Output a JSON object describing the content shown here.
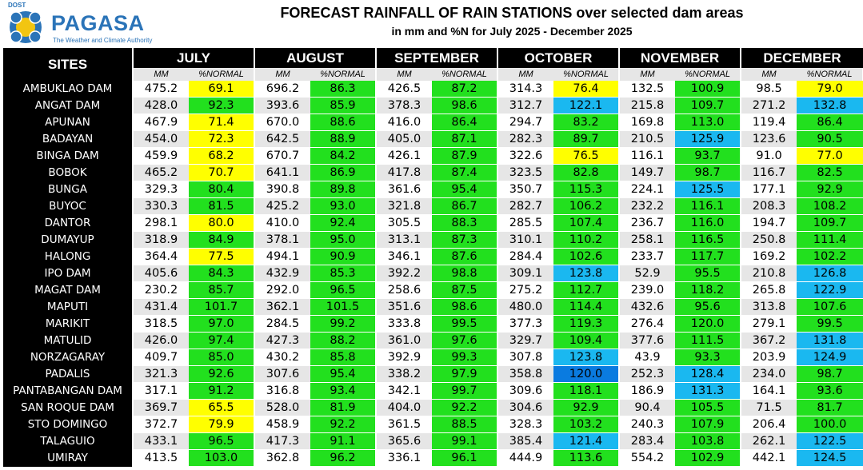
{
  "logo": {
    "agency": "DOST",
    "name": "PAGASA",
    "tagline": "The Weather and Climate Authority"
  },
  "title": "FORECAST RAINFALL OF RAIN STATIONS over selected dam areas",
  "subtitle": "in mm and %N for July 2025 - December 2025",
  "columns": {
    "sites": "SITES",
    "mm": "MM",
    "pct": "%NORMAL"
  },
  "months": [
    "JULY",
    "AUGUST",
    "SEPTEMBER",
    "OCTOBER",
    "NOVEMBER",
    "DECEMBER"
  ],
  "colors": {
    "green": "#22e01e",
    "yellow": "#ffff00",
    "lightblue": "#1ab8f0",
    "blue": "#0a7be0"
  },
  "rows": [
    {
      "site": "AMBUKLAO DAM",
      "v": [
        [
          "475.2",
          "69.1",
          "yellow"
        ],
        [
          "696.2",
          "86.3",
          "green"
        ],
        [
          "426.5",
          "87.2",
          "green"
        ],
        [
          "314.3",
          "76.4",
          "yellow"
        ],
        [
          "132.5",
          "100.9",
          "green"
        ],
        [
          "98.5",
          "79.0",
          "yellow"
        ]
      ]
    },
    {
      "site": "ANGAT DAM",
      "v": [
        [
          "428.0",
          "92.3",
          "green"
        ],
        [
          "393.6",
          "85.9",
          "green"
        ],
        [
          "378.3",
          "98.6",
          "green"
        ],
        [
          "312.7",
          "122.1",
          "lightblue"
        ],
        [
          "215.8",
          "109.7",
          "green"
        ],
        [
          "271.2",
          "132.8",
          "lightblue"
        ]
      ]
    },
    {
      "site": "APUNAN",
      "v": [
        [
          "467.9",
          "71.4",
          "yellow"
        ],
        [
          "670.0",
          "88.6",
          "green"
        ],
        [
          "416.0",
          "86.4",
          "green"
        ],
        [
          "294.7",
          "83.2",
          "green"
        ],
        [
          "169.8",
          "113.0",
          "green"
        ],
        [
          "119.4",
          "86.4",
          "green"
        ]
      ]
    },
    {
      "site": "BADAYAN",
      "v": [
        [
          "454.0",
          "72.3",
          "yellow"
        ],
        [
          "642.5",
          "88.9",
          "green"
        ],
        [
          "405.0",
          "87.1",
          "green"
        ],
        [
          "282.3",
          "89.7",
          "green"
        ],
        [
          "210.5",
          "125.9",
          "lightblue"
        ],
        [
          "123.6",
          "90.5",
          "green"
        ]
      ]
    },
    {
      "site": "BINGA DAM",
      "v": [
        [
          "459.9",
          "68.2",
          "yellow"
        ],
        [
          "670.7",
          "84.2",
          "green"
        ],
        [
          "426.1",
          "87.9",
          "green"
        ],
        [
          "322.6",
          "76.5",
          "yellow"
        ],
        [
          "116.1",
          "93.7",
          "green"
        ],
        [
          "91.0",
          "77.0",
          "yellow"
        ]
      ]
    },
    {
      "site": "BOBOK",
      "v": [
        [
          "465.2",
          "70.7",
          "yellow"
        ],
        [
          "641.1",
          "86.9",
          "green"
        ],
        [
          "417.8",
          "87.4",
          "green"
        ],
        [
          "323.5",
          "82.8",
          "green"
        ],
        [
          "149.7",
          "98.7",
          "green"
        ],
        [
          "116.7",
          "82.5",
          "green"
        ]
      ]
    },
    {
      "site": "BUNGA",
      "v": [
        [
          "329.3",
          "80.4",
          "green"
        ],
        [
          "390.8",
          "89.8",
          "green"
        ],
        [
          "361.6",
          "95.4",
          "green"
        ],
        [
          "350.7",
          "115.3",
          "green"
        ],
        [
          "224.1",
          "125.5",
          "lightblue"
        ],
        [
          "177.1",
          "92.9",
          "green"
        ]
      ]
    },
    {
      "site": "BUYOC",
      "v": [
        [
          "330.3",
          "81.5",
          "green"
        ],
        [
          "425.2",
          "93.0",
          "green"
        ],
        [
          "321.8",
          "86.7",
          "green"
        ],
        [
          "282.7",
          "106.2",
          "green"
        ],
        [
          "232.2",
          "116.1",
          "green"
        ],
        [
          "208.3",
          "108.2",
          "green"
        ]
      ]
    },
    {
      "site": "DANTOR",
      "v": [
        [
          "298.1",
          "80.0",
          "yellow"
        ],
        [
          "410.0",
          "92.4",
          "green"
        ],
        [
          "305.5",
          "88.3",
          "green"
        ],
        [
          "285.5",
          "107.4",
          "green"
        ],
        [
          "236.7",
          "116.0",
          "green"
        ],
        [
          "194.7",
          "109.7",
          "green"
        ]
      ]
    },
    {
      "site": "DUMAYUP",
      "v": [
        [
          "318.9",
          "84.9",
          "green"
        ],
        [
          "378.1",
          "95.0",
          "green"
        ],
        [
          "313.1",
          "87.3",
          "green"
        ],
        [
          "310.1",
          "110.2",
          "green"
        ],
        [
          "258.1",
          "116.5",
          "green"
        ],
        [
          "250.8",
          "111.4",
          "green"
        ]
      ]
    },
    {
      "site": "HALONG",
      "v": [
        [
          "364.4",
          "77.5",
          "yellow"
        ],
        [
          "494.1",
          "90.9",
          "green"
        ],
        [
          "346.1",
          "87.6",
          "green"
        ],
        [
          "284.4",
          "102.6",
          "green"
        ],
        [
          "233.7",
          "117.7",
          "green"
        ],
        [
          "169.2",
          "102.2",
          "green"
        ]
      ]
    },
    {
      "site": "IPO DAM",
      "v": [
        [
          "405.6",
          "84.3",
          "green"
        ],
        [
          "432.9",
          "85.3",
          "green"
        ],
        [
          "392.2",
          "98.8",
          "green"
        ],
        [
          "309.1",
          "123.8",
          "lightblue"
        ],
        [
          "52.9",
          "95.5",
          "green"
        ],
        [
          "210.8",
          "126.8",
          "lightblue"
        ]
      ]
    },
    {
      "site": "MAGAT DAM",
      "v": [
        [
          "230.2",
          "85.7",
          "green"
        ],
        [
          "292.0",
          "96.5",
          "green"
        ],
        [
          "258.6",
          "87.5",
          "green"
        ],
        [
          "275.2",
          "112.7",
          "green"
        ],
        [
          "239.0",
          "118.2",
          "green"
        ],
        [
          "265.8",
          "122.9",
          "lightblue"
        ]
      ]
    },
    {
      "site": "MAPUTI",
      "v": [
        [
          "431.4",
          "101.7",
          "green"
        ],
        [
          "362.1",
          "101.5",
          "green"
        ],
        [
          "351.6",
          "98.6",
          "green"
        ],
        [
          "480.0",
          "114.4",
          "green"
        ],
        [
          "432.6",
          "95.6",
          "green"
        ],
        [
          "313.8",
          "107.6",
          "green"
        ]
      ]
    },
    {
      "site": "MARIKIT",
      "v": [
        [
          "318.5",
          "97.0",
          "green"
        ],
        [
          "284.5",
          "99.2",
          "green"
        ],
        [
          "333.8",
          "99.5",
          "green"
        ],
        [
          "377.3",
          "119.3",
          "green"
        ],
        [
          "276.4",
          "120.0",
          "green"
        ],
        [
          "279.1",
          "99.5",
          "green"
        ]
      ]
    },
    {
      "site": "MATULID",
      "v": [
        [
          "426.0",
          "97.4",
          "green"
        ],
        [
          "427.3",
          "88.2",
          "green"
        ],
        [
          "361.0",
          "97.6",
          "green"
        ],
        [
          "329.7",
          "109.4",
          "green"
        ],
        [
          "377.6",
          "111.5",
          "green"
        ],
        [
          "367.2",
          "131.8",
          "lightblue"
        ]
      ]
    },
    {
      "site": "NORZAGARAY",
      "v": [
        [
          "409.7",
          "85.0",
          "green"
        ],
        [
          "430.2",
          "85.8",
          "green"
        ],
        [
          "392.9",
          "99.3",
          "green"
        ],
        [
          "307.8",
          "123.8",
          "lightblue"
        ],
        [
          "43.9",
          "93.3",
          "green"
        ],
        [
          "203.9",
          "124.9",
          "lightblue"
        ]
      ]
    },
    {
      "site": "PADALIS",
      "v": [
        [
          "321.3",
          "92.6",
          "green"
        ],
        [
          "307.6",
          "95.4",
          "green"
        ],
        [
          "338.2",
          "97.9",
          "green"
        ],
        [
          "358.8",
          "120.0",
          "blue"
        ],
        [
          "252.3",
          "128.4",
          "lightblue"
        ],
        [
          "234.0",
          "98.7",
          "green"
        ]
      ]
    },
    {
      "site": "PANTABANGAN DAM",
      "v": [
        [
          "317.1",
          "91.2",
          "green"
        ],
        [
          "316.8",
          "93.4",
          "green"
        ],
        [
          "342.1",
          "99.7",
          "green"
        ],
        [
          "309.6",
          "118.1",
          "green"
        ],
        [
          "186.9",
          "131.3",
          "lightblue"
        ],
        [
          "164.1",
          "93.6",
          "green"
        ]
      ]
    },
    {
      "site": "SAN ROQUE DAM",
      "v": [
        [
          "369.7",
          "65.5",
          "yellow"
        ],
        [
          "528.0",
          "81.9",
          "green"
        ],
        [
          "404.0",
          "92.2",
          "green"
        ],
        [
          "304.6",
          "92.9",
          "green"
        ],
        [
          "90.4",
          "105.5",
          "green"
        ],
        [
          "71.5",
          "81.7",
          "green"
        ]
      ]
    },
    {
      "site": "STO DOMINGO",
      "v": [
        [
          "372.7",
          "79.9",
          "yellow"
        ],
        [
          "458.9",
          "92.2",
          "green"
        ],
        [
          "361.5",
          "88.5",
          "green"
        ],
        [
          "328.3",
          "103.2",
          "green"
        ],
        [
          "240.3",
          "107.9",
          "green"
        ],
        [
          "206.4",
          "100.0",
          "green"
        ]
      ]
    },
    {
      "site": "TALAGUIO",
      "v": [
        [
          "433.1",
          "96.5",
          "green"
        ],
        [
          "417.3",
          "91.1",
          "green"
        ],
        [
          "365.6",
          "99.1",
          "green"
        ],
        [
          "385.4",
          "121.4",
          "lightblue"
        ],
        [
          "283.4",
          "103.8",
          "green"
        ],
        [
          "262.1",
          "122.5",
          "lightblue"
        ]
      ]
    },
    {
      "site": "UMIRAY",
      "v": [
        [
          "413.5",
          "103.0",
          "green"
        ],
        [
          "362.8",
          "96.2",
          "green"
        ],
        [
          "336.1",
          "96.1",
          "green"
        ],
        [
          "444.9",
          "113.6",
          "green"
        ],
        [
          "554.2",
          "102.9",
          "green"
        ],
        [
          "442.1",
          "124.5",
          "lightblue"
        ]
      ]
    }
  ]
}
